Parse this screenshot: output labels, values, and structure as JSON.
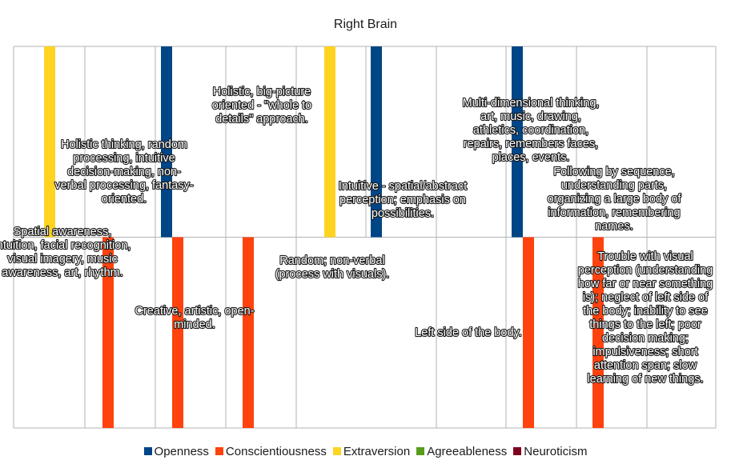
{
  "chart_data": {
    "type": "bar",
    "title": "Right Brain",
    "xlabel": "",
    "ylabel": "",
    "grid": true,
    "legend_position": "bottom",
    "rows": [
      {
        "categories": [
          "Holistic thinking, random processing, intuitive decision-making, non-verbal processing, fantasy-oriented.",
          "Holistic, big-picture oriented - \"whole to details\" approach.",
          "Intuitive - spatial/abstract perception; emphasis on possibilities.",
          "Multi-dimensional thinking, art, music, drawing, athletics, coordination, repairs, remembers faces, places, events.",
          "Following by sequence, understanding parts, organizing a large body of information, remembering names."
        ],
        "bars": [
          {
            "series": "Extraversion",
            "category": 0
          },
          {
            "series": "Openness",
            "category": 0
          },
          {
            "series": "Extraversion",
            "category": 2
          },
          {
            "series": "Openness",
            "category": 2
          },
          {
            "series": "Openness",
            "category": 3
          }
        ]
      },
      {
        "categories": [
          "Spatial awareness, intuition, facial recognition, visual imagery, music awareness, art, rhythm.",
          "Creative, artistic, open-minded.",
          "Random; non-verbal (process with visuals).",
          "Left side of the body.",
          "Trouble with visual perception (understanding how far or near something is); neglect of left side of the body; inability to see things to the left; poor decision making; impulsiveness; short attention span; slow learning of new things."
        ],
        "bars": [
          {
            "series": "Conscientiousness",
            "category": 0
          },
          {
            "series": "Conscientiousness",
            "category": 1
          },
          {
            "series": "Conscientiousness",
            "category": 1
          },
          {
            "series": "Conscientiousness",
            "category": 3
          },
          {
            "series": "Conscientiousness",
            "category": 4
          }
        ]
      }
    ],
    "series": [
      {
        "name": "Openness",
        "color": "#004586"
      },
      {
        "name": "Conscientiousness",
        "color": "#ff420e"
      },
      {
        "name": "Extraversion",
        "color": "#ffd320"
      },
      {
        "name": "Agreeableness",
        "color": "#579d1c"
      },
      {
        "name": "Neuroticism",
        "color": "#7e0021"
      }
    ]
  }
}
